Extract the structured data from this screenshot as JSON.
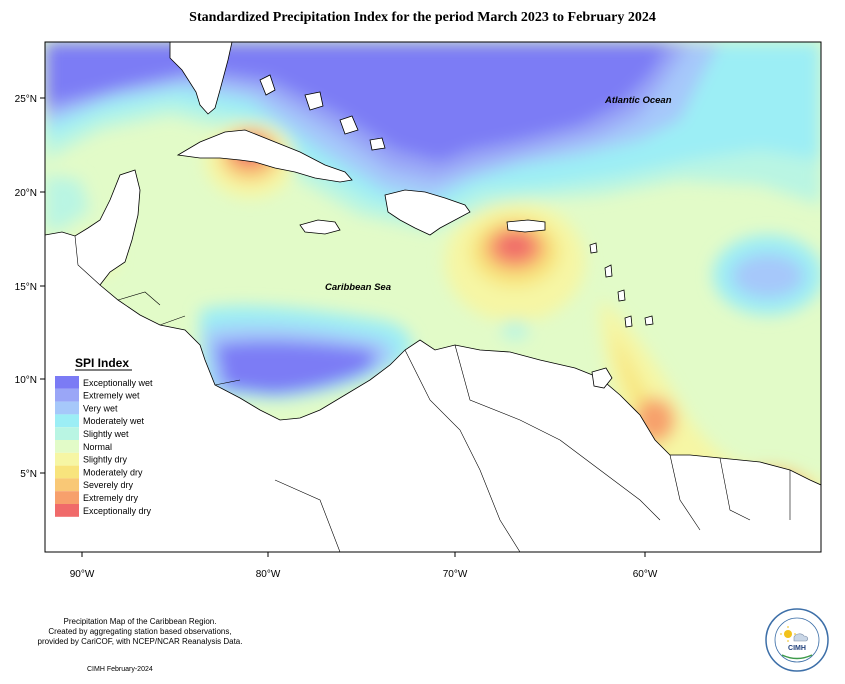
{
  "title": "Standardized Precipitation Index for the period March 2023 to February 2024",
  "map": {
    "ocean_labels": [
      "Atlantic Ocean",
      "Caribbean Sea"
    ],
    "lat_ticks": [
      "25°N",
      "20°N",
      "15°N",
      "10°N",
      "5°N"
    ],
    "lon_ticks": [
      "90°W",
      "80°W",
      "70°W",
      "60°W"
    ]
  },
  "legend": {
    "title": "SPI Index",
    "items": [
      {
        "label": "Exceptionally wet",
        "color": "#7b7bf5"
      },
      {
        "label": "Extremely wet",
        "color": "#9aa6f7"
      },
      {
        "label": "Very wet",
        "color": "#a6c8fa"
      },
      {
        "label": "Moderately wet",
        "color": "#9ceef5"
      },
      {
        "label": "Slightly wet",
        "color": "#b9f5e3"
      },
      {
        "label": "Normal",
        "color": "#e2fbc8"
      },
      {
        "label": "Slightly dry",
        "color": "#f6f6a4"
      },
      {
        "label": "Moderately dry",
        "color": "#f8e47d"
      },
      {
        "label": "Severely dry",
        "color": "#f9c876"
      },
      {
        "label": "Extremely dry",
        "color": "#f7a06c"
      },
      {
        "label": "Exceptionally dry",
        "color": "#f06a6a"
      }
    ]
  },
  "footer": {
    "lines": [
      "Precipitation Map of the Caribbean Region.",
      "Created by aggregating station based observations,",
      "provided by CariCOF, with NCEP/NCAR Reanalysis Data."
    ],
    "credit": "CIMH February-2024"
  },
  "logo": {
    "text": "CIMH"
  }
}
